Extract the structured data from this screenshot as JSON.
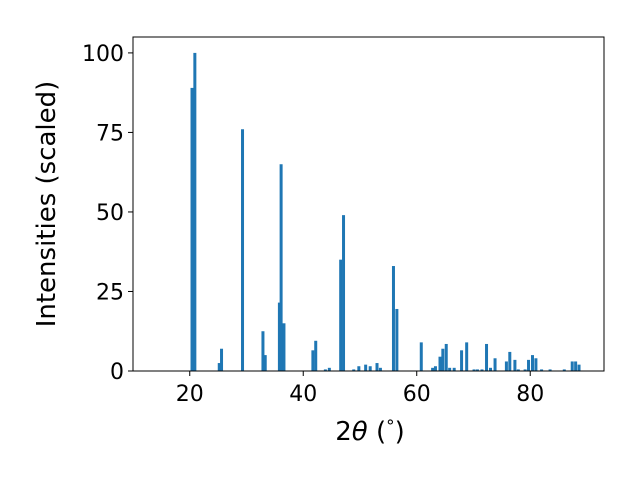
{
  "chart_data": {
    "type": "bar",
    "xlabel_prefix": "2",
    "xlabel_symbol": "θ",
    "xlabel_unit_open": " (",
    "xlabel_unit": "°",
    "xlabel_unit_close": ")",
    "ylabel": "Intensities (scaled)",
    "xlim": [
      10,
      93
    ],
    "ylim": [
      0,
      105
    ],
    "x_ticks": [
      20,
      40,
      60,
      80
    ],
    "y_ticks": [
      0,
      25,
      50,
      75,
      100
    ],
    "bar_color": "#1f77b4",
    "grid": false,
    "x": [
      20.4,
      20.9,
      25.2,
      25.6,
      29.3,
      32.9,
      33.3,
      35.8,
      36.1,
      36.6,
      41.7,
      42.2,
      43.9,
      44.6,
      46.6,
      47.1,
      48.9,
      49.8,
      51.0,
      51.8,
      53.0,
      53.6,
      55.9,
      56.5,
      60.8,
      62.8,
      63.3,
      64.1,
      64.6,
      65.2,
      65.8,
      66.6,
      67.9,
      68.8,
      70.1,
      70.7,
      71.5,
      72.3,
      73.0,
      73.8,
      75.8,
      76.4,
      77.3,
      77.9,
      79.1,
      79.7,
      80.4,
      81.0,
      82.0,
      83.5,
      86.0,
      87.4,
      88.0,
      88.6
    ],
    "values": [
      89,
      100,
      2.5,
      7,
      76,
      12.5,
      5,
      21.5,
      65,
      15,
      6.5,
      9.5,
      0.5,
      1,
      35,
      49,
      0.5,
      1.5,
      2,
      1.5,
      2.5,
      1,
      33,
      19.5,
      9,
      1,
      1.5,
      4.5,
      7,
      8.5,
      1,
      1,
      6.5,
      9,
      0.5,
      0.5,
      0.5,
      8.5,
      1,
      4,
      3,
      6,
      3.5,
      0.5,
      0.5,
      3.5,
      5,
      4,
      0.5,
      0.5,
      0.5,
      3,
      3,
      2
    ]
  }
}
